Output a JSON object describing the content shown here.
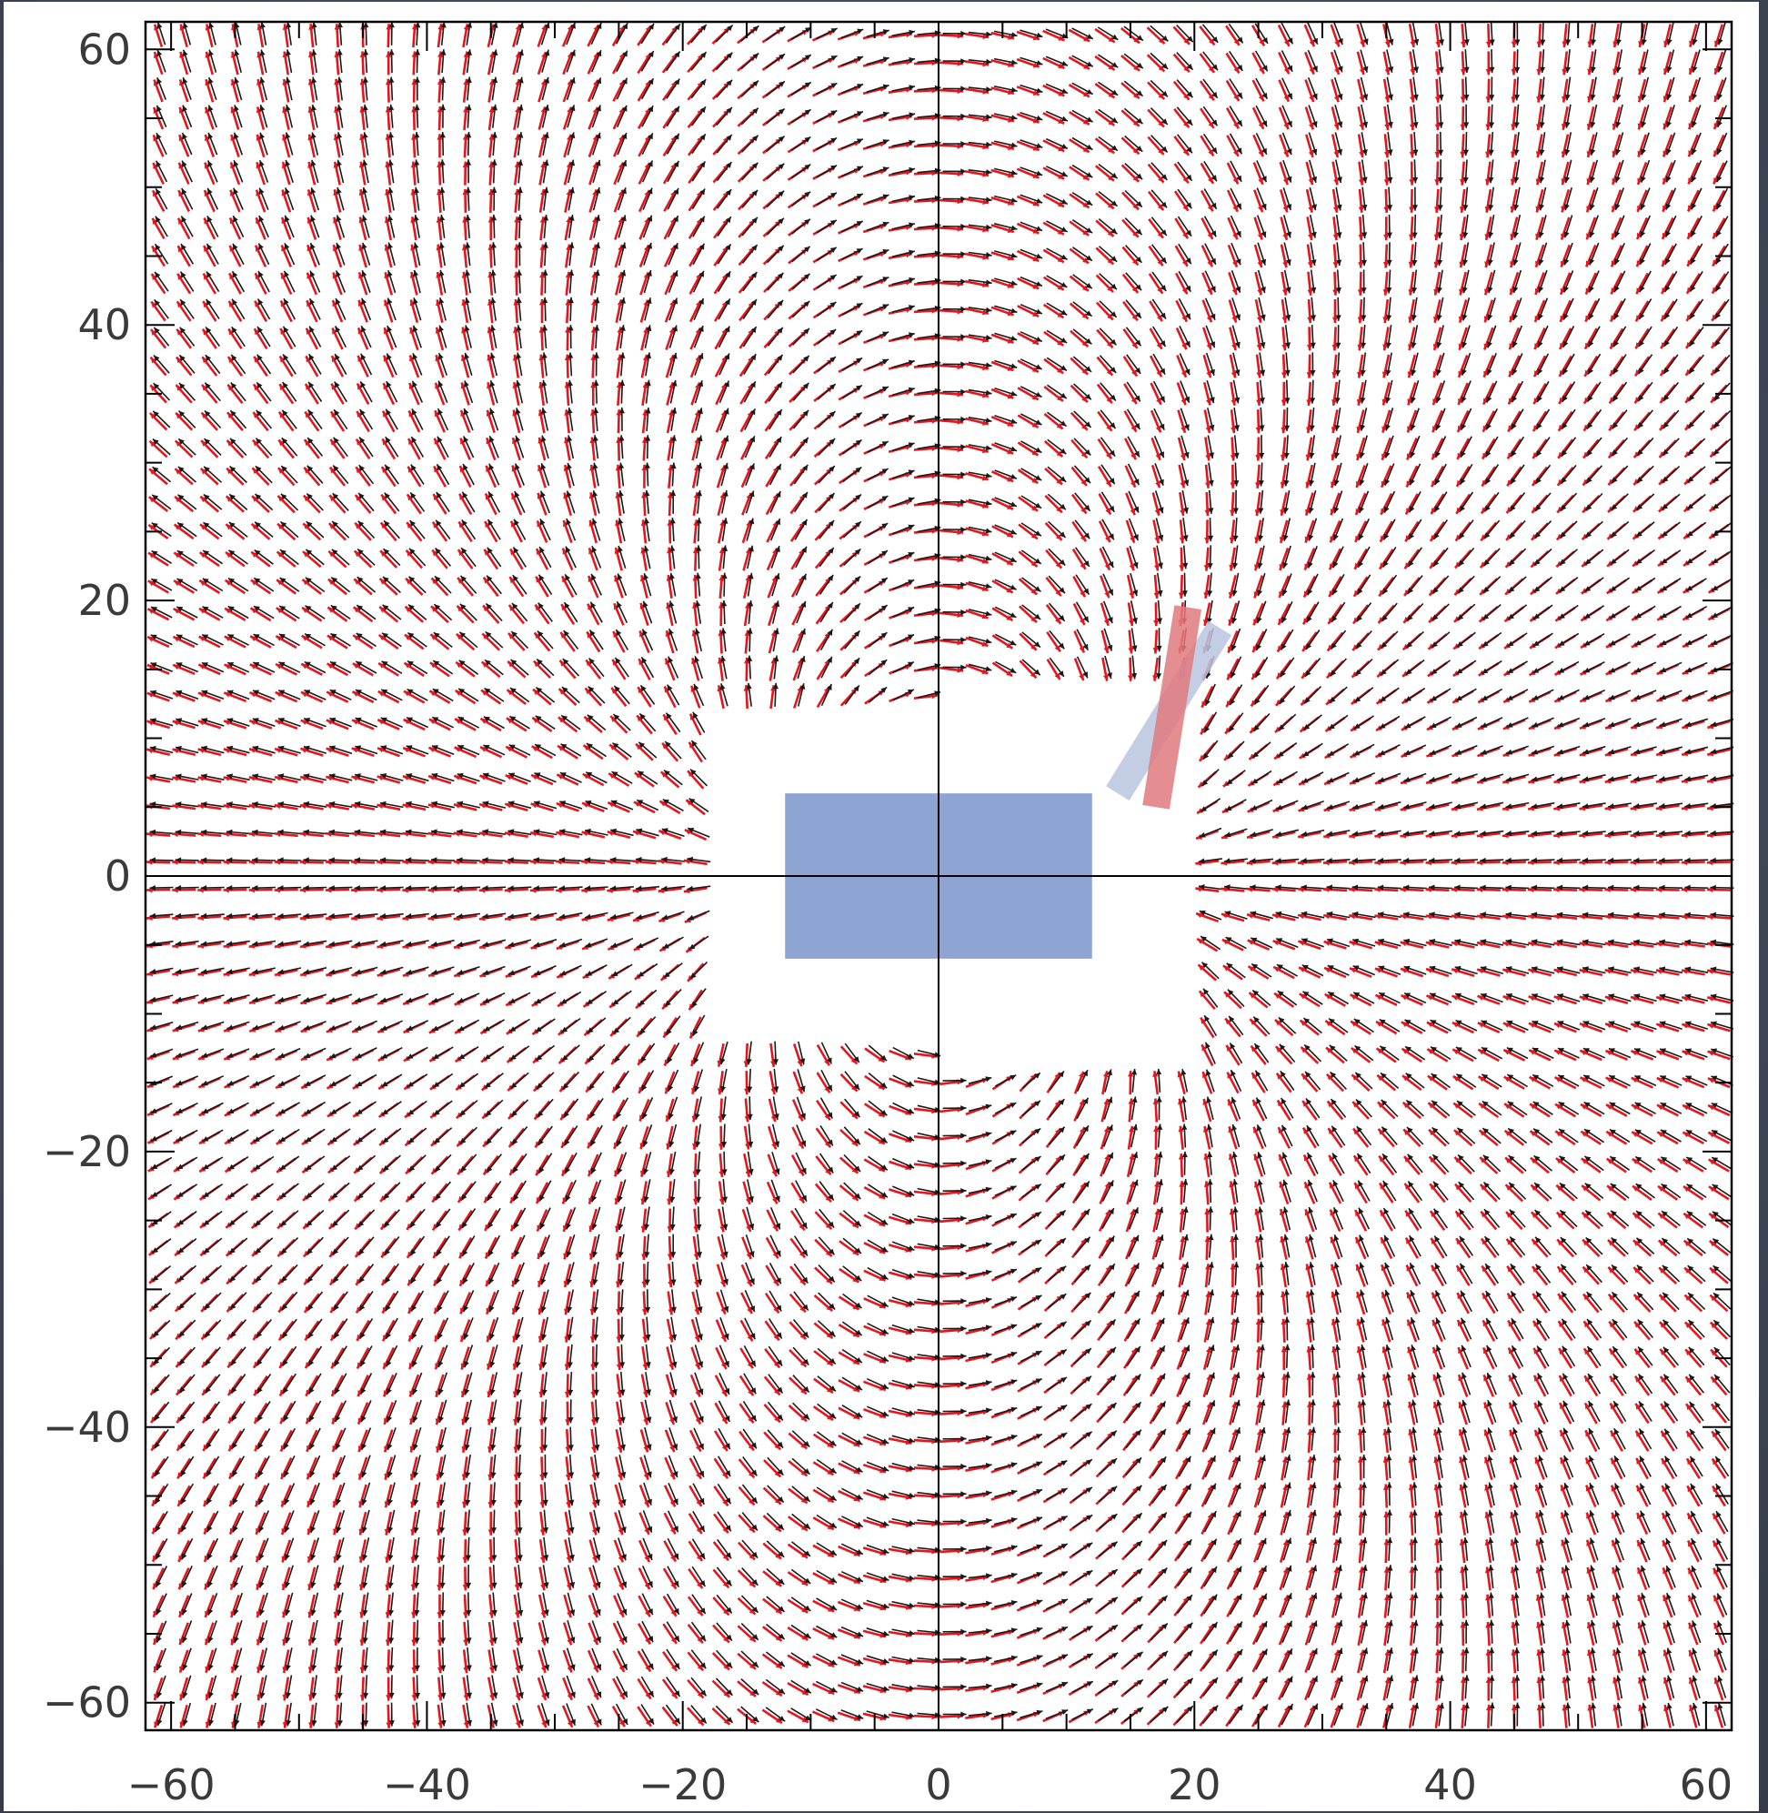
{
  "chart_data": {
    "type": "quiver",
    "title": "",
    "xlabel": "",
    "ylabel": "",
    "xlim": [
      -62,
      62
    ],
    "ylim": [
      -62,
      62
    ],
    "grid": false,
    "x_ticks": [
      -60,
      -40,
      -20,
      0,
      20,
      40,
      60
    ],
    "y_ticks": [
      -60,
      -40,
      -20,
      0,
      20,
      40,
      60
    ],
    "x_tick_labels": [
      "−60",
      "−40",
      "−20",
      "0",
      "20",
      "40",
      "60"
    ],
    "y_tick_labels": [
      "−60",
      "−40",
      "−20",
      "0",
      "20",
      "40",
      "60"
    ],
    "vector_field": {
      "grid_spacing": 2,
      "range": [
        -61,
        61
      ],
      "source": {
        "x": -12,
        "y": 0
      },
      "sink": {
        "x": 12,
        "y": 0
      },
      "excluded_regions": [
        {
          "x": [
            -18,
            0
          ],
          "y": [
            -12,
            12
          ]
        },
        {
          "x": [
            0,
            20
          ],
          "y": [
            -14,
            14
          ]
        }
      ],
      "series": [
        {
          "role": "field-a",
          "color": "#e8141c"
        },
        {
          "role": "field-b",
          "color": "#1a1a1a"
        }
      ]
    },
    "shapes": [
      {
        "role": "magnet-block",
        "x": [
          -12,
          12
        ],
        "y": [
          -6,
          6
        ],
        "color": "#8ea4d2"
      },
      {
        "role": "blue-needle",
        "from": {
          "x": 14,
          "y": 6
        },
        "to": {
          "x": 22,
          "y": 18
        },
        "color": "#b8c6e0"
      },
      {
        "role": "red-needle",
        "from": {
          "x": 17,
          "y": 5
        },
        "to": {
          "x": 19.5,
          "y": 19.5
        },
        "color": "#e07a7e"
      }
    ],
    "colors": {
      "axis": "#000000",
      "background": "#ffffff"
    }
  }
}
